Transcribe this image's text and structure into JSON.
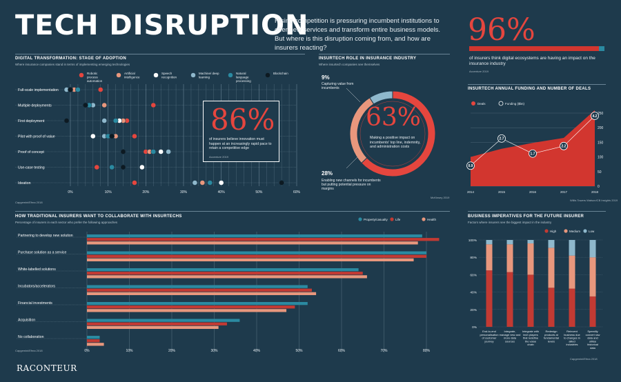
{
  "header": {
    "title": "TECH DISRUPTION",
    "intro": "Rising competition is pressuring incumbent institutions to offer new services and transform entire business models. But where is this disruption coming from, and how are insurers reacting?"
  },
  "stat96": {
    "value": "96%",
    "caption": "of insurers think digital ecosystems are having an impact on the insurance industry",
    "source": "Accenture 2019",
    "fraction": 0.96
  },
  "adoption": {
    "heading": "DIGITAL TRANSFORMATION: STAGE OF ADOPTION",
    "subheading": "Where insurance companies stand in terms of implementing emerging technologies",
    "source": "Capgemini/Efma 2018",
    "stat": {
      "value": "86%",
      "caption": "of insurers believe innovation must happen at an increasingly rapid pace to retain a competitive edge",
      "source": "Accenture 2019"
    }
  },
  "role": {
    "heading": "INSURTECH ROLE IN INSURANCE INDUSTRY",
    "subheading": "Where insurtech companies see themselves",
    "source": "McKinsey 2019",
    "center_value": "63%",
    "center_caption": "Making a positive impact on incumbents' top line, indemnity, and administration costs",
    "top_value": "9%",
    "top_caption": "Capturing value from incumbents",
    "bottom_value": "28%",
    "bottom_caption": "Enabling new channels for incumbents but putting potential pressure on margins"
  },
  "funding": {
    "heading": "INSURTECH ANNUAL FUNDING AND NUMBER OF DEALS",
    "source": "Willis Towers Watson/CB Insights 2019"
  },
  "collab": {
    "heading": "HOW TRADITIONAL INSURERS WANT TO COLLABORATE WITH INSURTECHS",
    "subheading": "Percentage of insurers in each sector who prefer the following approaches",
    "source": "Capgemini/Efma 2018"
  },
  "imperatives": {
    "heading": "BUSINESS IMPERATIVES FOR THE FUTURE INSURER",
    "subheading": "Factors where insurers see the biggest impact in the industry",
    "source": "Capgemini/Efma 2018"
  },
  "brand": "RACONTEUR",
  "colors": {
    "background": "#1e3a4c",
    "red": "#e5463e",
    "darkred": "#c23a33",
    "salmon": "#e8977d",
    "teal": "#2b8aa1",
    "lightblue": "#8fb8cc",
    "grid": "#6a8596"
  },
  "chart_data": [
    {
      "id": "adoption",
      "type": "scatter",
      "categories": [
        "Full-scale implementation",
        "Multiple deployments",
        "First deployment",
        "Pilot with proof of value",
        "Proof of concept",
        "Use-case testing",
        "Ideation"
      ],
      "x_ticks": [
        "0%",
        "10%",
        "20%",
        "30%",
        "40%",
        "50%",
        "60%"
      ],
      "xlim": [
        0,
        60
      ],
      "series": [
        {
          "name": "Robotic process automation",
          "color": "#e5463e",
          "values": [
            8,
            22,
            15,
            17,
            20,
            7,
            17
          ]
        },
        {
          "name": "Artificial intelligence",
          "color": "#e8977d",
          "values": [
            1,
            9,
            14,
            12,
            21,
            19,
            35
          ]
        },
        {
          "name": "Speech recognition",
          "color": "#ffffff",
          "values": [
            2,
            6,
            13,
            6,
            24,
            19,
            40
          ]
        },
        {
          "name": "Machine/ deep learning",
          "color": "#8fb8cc",
          "values": [
            -1,
            6,
            9,
            9,
            26,
            14,
            33
          ]
        },
        {
          "name": "Natural language processing",
          "color": "#2b8aa1",
          "values": [
            2,
            5,
            12,
            10,
            22,
            11,
            37
          ]
        },
        {
          "name": "Blockchain",
          "color": "#0d1a22",
          "values": [
            0,
            4,
            -1,
            11,
            14,
            14,
            56
          ]
        }
      ]
    },
    {
      "id": "role",
      "type": "pie",
      "labels": [
        "Making a positive impact on incumbents' top line, indemnity, and administration costs",
        "Enabling new channels for incumbents but putting potential pressure on margins",
        "Capturing value from incumbents"
      ],
      "values": [
        63,
        28,
        9
      ]
    },
    {
      "id": "funding",
      "type": "area",
      "categories": [
        "2014",
        "2015",
        "2016",
        "2017",
        "2018"
      ],
      "series": [
        {
          "name": "Deals",
          "color": "#e5463e",
          "values": [
            100,
            128,
            148,
            165,
            260
          ]
        },
        {
          "name": "Funding ($bn)",
          "color": "#ffffff",
          "values": [
            0.9,
            2.7,
            1.7,
            2.2,
            4.2
          ],
          "labels": [
            "0.9",
            "2.7",
            "1.7",
            "2.2",
            "4.2"
          ]
        }
      ],
      "y_right_ticks": [
        "0",
        "50",
        "100",
        "150",
        "200",
        "250"
      ],
      "ylim_deals": [
        0,
        250
      ],
      "ylim_funding": [
        0,
        4.2
      ]
    },
    {
      "id": "collab",
      "type": "bar",
      "orientation": "horizontal",
      "categories": [
        "Partnering to develop new solution",
        "Purchase solution as a service",
        "White-labelled solutions",
        "Incubators/accelerators",
        "Financial investments",
        "Acquisition",
        "No collaboration"
      ],
      "series": [
        {
          "name": "Property/casualty",
          "color": "#2b8aa1",
          "values": [
            79,
            80,
            64,
            52,
            52,
            36,
            3
          ]
        },
        {
          "name": "Life",
          "color": "#c23a33",
          "values": [
            83,
            80,
            65,
            53,
            49,
            33,
            3
          ]
        },
        {
          "name": "Health",
          "color": "#e8977d",
          "values": [
            78,
            77,
            66,
            54,
            47,
            31,
            4
          ]
        }
      ],
      "x_ticks": [
        "0%",
        "10%",
        "20%",
        "30%",
        "40%",
        "50%",
        "60%",
        "70%",
        "80%"
      ],
      "xlim": [
        0,
        80
      ]
    },
    {
      "id": "imperatives",
      "type": "bar",
      "stacked": true,
      "categories": [
        "End-to-end personalisation of customer journey",
        "Integrate, manage new and more data sources",
        "Integrate with tech players that redefine the value chain",
        "Redesign products at fundamental levels",
        "Reinvent business due to changes in allied industries",
        "Speedily convert raw data and utilise historical data"
      ],
      "series": [
        {
          "name": "High",
          "color": "#c23a33",
          "values": [
            65,
            63,
            60,
            45,
            44,
            35
          ]
        },
        {
          "name": "Medium",
          "color": "#e8977d",
          "values": [
            30,
            32,
            36,
            46,
            38,
            45
          ]
        },
        {
          "name": "Low",
          "color": "#8fb8cc",
          "values": [
            5,
            5,
            4,
            9,
            18,
            20
          ]
        }
      ],
      "y_ticks": [
        "100%",
        "80%",
        "60%",
        "40%",
        "20%",
        "0%"
      ],
      "ylim": [
        0,
        100
      ]
    }
  ]
}
